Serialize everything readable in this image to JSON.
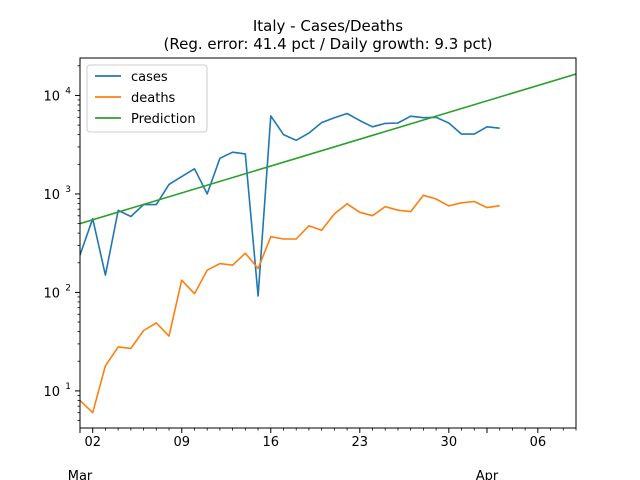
{
  "chart_data": {
    "type": "line",
    "title": "Italy - Cases/Deaths",
    "subtitle": "(Reg. error: 41.4 pct / Daily growth: 9.3 pct)",
    "xlabel": "",
    "ylabel": "",
    "yscale": "log",
    "ylim": [
      4.2,
      24000
    ],
    "x_start_date": "2020-02-29",
    "xlim_day": [
      1,
      40
    ],
    "x_major_ticks": [
      {
        "day": 2,
        "label": "02"
      },
      {
        "day": 9,
        "label": "09"
      },
      {
        "day": 16,
        "label": "16"
      },
      {
        "day": 23,
        "label": "23"
      },
      {
        "day": 30,
        "label": "30"
      },
      {
        "day": 37,
        "label": "06"
      }
    ],
    "x_month_labels": [
      {
        "day": 1,
        "label": "Mar"
      },
      {
        "day": 33,
        "label": "Apr"
      }
    ],
    "y_ticks": [
      {
        "value": 10,
        "base": "10",
        "exp": "1"
      },
      {
        "value": 100,
        "base": "10",
        "exp": "2"
      },
      {
        "value": 1000,
        "base": "10",
        "exp": "3"
      },
      {
        "value": 10000,
        "base": "10",
        "exp": "4"
      }
    ],
    "legend_position": "upper-left",
    "grid": false,
    "series": [
      {
        "name": "cases",
        "color": "#1f77b4",
        "x_day": [
          1,
          2,
          3,
          4,
          5,
          6,
          7,
          8,
          9,
          10,
          11,
          12,
          13,
          14,
          15,
          16,
          17,
          18,
          19,
          20,
          21,
          22,
          23,
          24,
          25,
          26,
          27,
          28,
          29,
          30,
          31,
          32,
          33,
          34
        ],
        "values": [
          240,
          560,
          150,
          680,
          590,
          780,
          780,
          1250,
          1500,
          1800,
          1000,
          2300,
          2650,
          2550,
          92,
          6200,
          4000,
          3500,
          4150,
          5300,
          5950,
          6550,
          5550,
          4800,
          5200,
          5250,
          6150,
          5950,
          6000,
          5250,
          4050,
          4050,
          4800,
          4650
        ]
      },
      {
        "name": "deaths",
        "color": "#ff7f0e",
        "x_day": [
          1,
          2,
          3,
          4,
          5,
          6,
          7,
          8,
          9,
          10,
          11,
          12,
          13,
          14,
          15,
          16,
          17,
          18,
          19,
          20,
          21,
          22,
          23,
          24,
          25,
          26,
          27,
          28,
          29,
          30,
          31,
          32,
          33,
          34
        ],
        "values": [
          8,
          6,
          18,
          28,
          27,
          41,
          49,
          36,
          133,
          97,
          168,
          196,
          189,
          250,
          175,
          368,
          349,
          349,
          475,
          427,
          627,
          793,
          651,
          601,
          743,
          683,
          662,
          969,
          889,
          756,
          812,
          837,
          727,
          760
        ]
      },
      {
        "name": "Prediction",
        "color": "#2ca02c",
        "x_day": [
          1,
          40
        ],
        "values": [
          500,
          16500
        ]
      }
    ]
  }
}
